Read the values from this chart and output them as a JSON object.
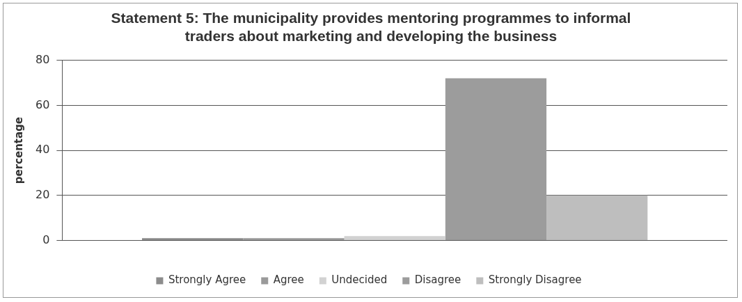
{
  "chart_data": {
    "type": "bar",
    "title": "Statement 5: The municipality provides mentoring programmes to informal traders about marketing and developing the business",
    "ylabel": "percentage",
    "categories": [
      null
    ],
    "series": [
      {
        "name": "Strongly Agree",
        "color": "#8c8c8c",
        "values": [
          1
        ]
      },
      {
        "name": "Agree",
        "color": "#9a9a9a",
        "values": [
          1
        ]
      },
      {
        "name": "Undecided",
        "color": "#d2d2d2",
        "values": [
          2
        ]
      },
      {
        "name": "Disagree",
        "color": "#9c9c9c",
        "values": [
          72
        ]
      },
      {
        "name": "Strongly Disagree",
        "color": "#bebebe",
        "values": [
          20
        ]
      }
    ],
    "ylim": [
      0,
      80
    ],
    "yticks": [
      0,
      20,
      40,
      60,
      80
    ],
    "grid": "y",
    "legend": "bottom"
  }
}
